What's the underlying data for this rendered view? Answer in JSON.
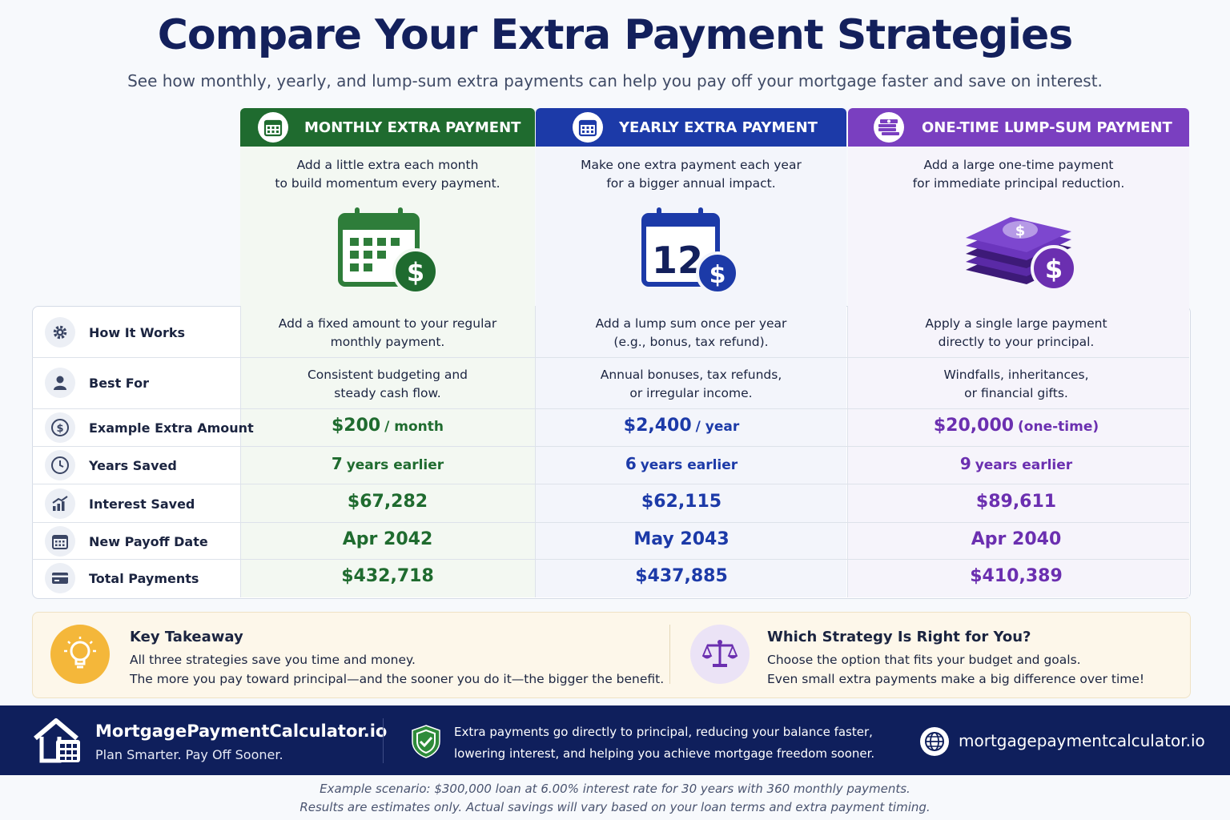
{
  "header": {
    "title": "Compare Your Extra Payment Strategies",
    "subtitle": "See how monthly, yearly, and lump-sum extra payments can help you pay off your mortgage faster and save on interest."
  },
  "colors": {
    "monthly": "#1f6b2f",
    "yearly": "#1c3aa8",
    "lump": "#7a3fc0",
    "navy": "#0f1f5c"
  },
  "strategies": [
    {
      "title": "MONTHLY EXTRA PAYMENT",
      "icon": "calendar-icon",
      "desc1": "Add a little extra each month",
      "desc2": "to build momentum every payment.",
      "illustration": "calendar-dollar-icon",
      "how1": "Add a fixed amount to your regular",
      "how2": "monthly payment.",
      "best1": "Consistent budgeting and",
      "best2": "steady cash flow.",
      "amount": "$200",
      "amount_unit": "/ month",
      "years_num": "7",
      "years_text": "years earlier",
      "interest": "$67,282",
      "payoff": "Apr 2042",
      "total": "$432,718"
    },
    {
      "title": "YEARLY EXTRA PAYMENT",
      "icon": "calendar-icon",
      "desc1": "Make one extra payment each year",
      "desc2": "for a bigger annual impact.",
      "illustration": "calendar-12-dollar-icon",
      "calendar_number": "12",
      "how1": "Add a lump sum once per year",
      "how2": "(e.g., bonus, tax refund).",
      "best1": "Annual bonuses, tax refunds,",
      "best2": "or irregular income.",
      "amount": "$2,400",
      "amount_unit": "/ year",
      "years_num": "6",
      "years_text": "years earlier",
      "interest": "$62,115",
      "payoff": "May 2043",
      "total": "$437,885"
    },
    {
      "title": "ONE-TIME LUMP-SUM PAYMENT",
      "icon": "cash-stack-icon",
      "desc1": "Add a large one-time payment",
      "desc2": "for immediate principal reduction.",
      "illustration": "money-stack-dollar-icon",
      "how1": "Apply a single large payment",
      "how2": "directly to your principal.",
      "best1": "Windfalls, inheritances,",
      "best2": "or financial gifts.",
      "amount": "$20,000",
      "amount_unit": "(one-time)",
      "years_num": "9",
      "years_text": "years earlier",
      "interest": "$89,611",
      "payoff": "Apr 2040",
      "total": "$410,389"
    }
  ],
  "rows": [
    {
      "label": "How It Works",
      "icon": "gear-icon"
    },
    {
      "label": "Best For",
      "icon": "person-icon"
    },
    {
      "label": "Example Extra Amount",
      "icon": "dollar-circle-icon"
    },
    {
      "label": "Years Saved",
      "icon": "clock-icon"
    },
    {
      "label": "Interest Saved",
      "icon": "growth-chart-icon"
    },
    {
      "label": "New Payoff Date",
      "icon": "calendar-icon"
    },
    {
      "label": "Total Payments",
      "icon": "credit-card-icon"
    }
  ],
  "takeaway": {
    "title": "Key Takeaway",
    "line1": "All three strategies save you time and money.",
    "line2": "The more you pay toward principal—and the sooner you do it—the bigger the benefit."
  },
  "which": {
    "title": "Which Strategy Is Right for You?",
    "line1": "Choose the option that fits your budget and goals.",
    "line2": "Even small extra payments make a big difference over time!"
  },
  "footer": {
    "brand": "MortgagePaymentCalculator.io",
    "tagline": "Plan Smarter. Pay Off Sooner.",
    "note1": "Extra payments go directly to principal, reducing your balance faster,",
    "note2": "lowering interest, and helping you achieve mortgage freedom sooner.",
    "url": "mortgagepaymentcalculator.io"
  },
  "disclaimer": {
    "line1": "Example scenario: $300,000 loan at 6.00% interest rate for 30 years with 360 monthly payments.",
    "line2": "Results are estimates only. Actual savings will vary based on your loan terms and extra payment timing."
  }
}
